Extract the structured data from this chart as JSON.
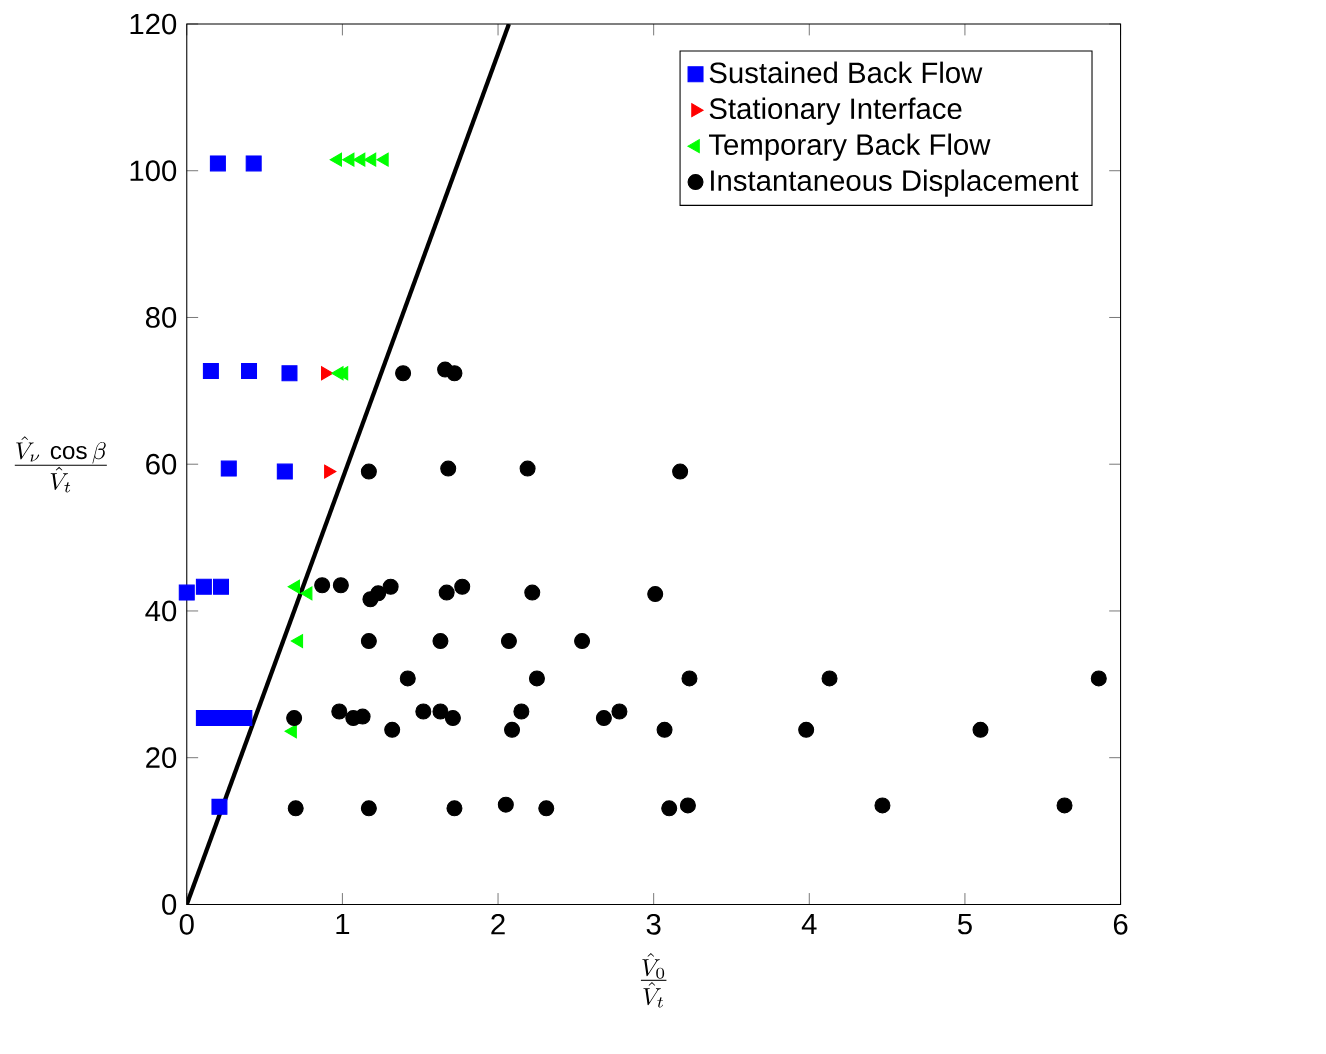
{
  "chart_data": {
    "type": "scatter",
    "xlabel": "\\frac{\\hat{V}_0}{\\hat{V}_t}",
    "ylabel": "\\frac{\\hat{V}_\\nu\\,\\cos\\beta}{\\hat{V}_t}",
    "xlim": [
      0,
      6
    ],
    "ylim": [
      0,
      120
    ],
    "xticks": [
      0,
      1,
      2,
      3,
      4,
      5,
      6
    ],
    "yticks": [
      0,
      20,
      40,
      60,
      80,
      100,
      120
    ],
    "grid": false,
    "legend": "top right",
    "series": [
      {
        "name": "Sustained Back Flow",
        "color": "#0000ff",
        "marker": "square",
        "x": [
          0.2,
          0.43,
          0.155,
          0.4,
          0.66,
          0.27,
          0.63,
          0.0,
          0.11,
          0.22,
          0.11,
          0.2,
          0.28,
          0.37,
          0.21
        ],
        "values": [
          101,
          101,
          72.7,
          72.7,
          72.4,
          59.4,
          59,
          42.5,
          43.3,
          43.3,
          25.4,
          25.4,
          25.4,
          25.4,
          13.3
        ]
      },
      {
        "name": "Stationary Interface",
        "color": "#ff0000",
        "marker": "triangle-right",
        "x": [
          0.89,
          0.91
        ],
        "values": [
          72.4,
          59
        ]
      },
      {
        "name": "Temporary Back Flow",
        "color": "#00ff00",
        "marker": "triangle-left",
        "x": [
          0.97,
          1.05,
          1.12,
          1.19,
          1.27,
          0.98,
          1.01,
          0.7,
          0.78,
          0.72,
          0.68
        ],
        "values": [
          101.5,
          101.5,
          101.5,
          101.5,
          101.5,
          72.4,
          72.4,
          43.3,
          42.4,
          35.9,
          23.6
        ]
      },
      {
        "name": "Instantaneous Displacement",
        "color": "#000000",
        "marker": "circle",
        "x": [
          1.39,
          1.66,
          1.72,
          1.17,
          1.68,
          2.19,
          3.17,
          0.87,
          0.99,
          1.18,
          1.23,
          1.31,
          1.67,
          1.77,
          2.22,
          3.01,
          1.17,
          1.63,
          2.07,
          2.54,
          1.42,
          2.25,
          3.23,
          4.13,
          5.86,
          0.69,
          0.98,
          1.07,
          1.13,
          1.32,
          1.52,
          1.63,
          1.71,
          2.09,
          2.15,
          2.68,
          2.78,
          3.07,
          3.98,
          5.1,
          0.7,
          1.17,
          1.72,
          2.05,
          2.31,
          3.1,
          3.22,
          4.47,
          5.64
        ],
        "values": [
          72.4,
          72.9,
          72.4,
          59,
          59.4,
          59.4,
          59,
          43.5,
          43.5,
          41.6,
          42.4,
          43.3,
          42.5,
          43.3,
          42.5,
          42.3,
          35.9,
          35.9,
          35.9,
          35.9,
          30.8,
          30.8,
          30.8,
          30.8,
          30.8,
          25.4,
          26.3,
          25.4,
          25.6,
          23.8,
          26.3,
          26.3,
          25.4,
          23.8,
          26.3,
          25.4,
          26.3,
          23.8,
          23.8,
          23.8,
          13.1,
          13.1,
          13.1,
          13.6,
          13.1,
          13.1,
          13.5,
          13.5,
          13.5
        ]
      },
      {
        "type": "line",
        "color": "#000000",
        "marker": "none",
        "x": [
          0,
          2.07
        ],
        "values": [
          0,
          120
        ]
      }
    ]
  }
}
